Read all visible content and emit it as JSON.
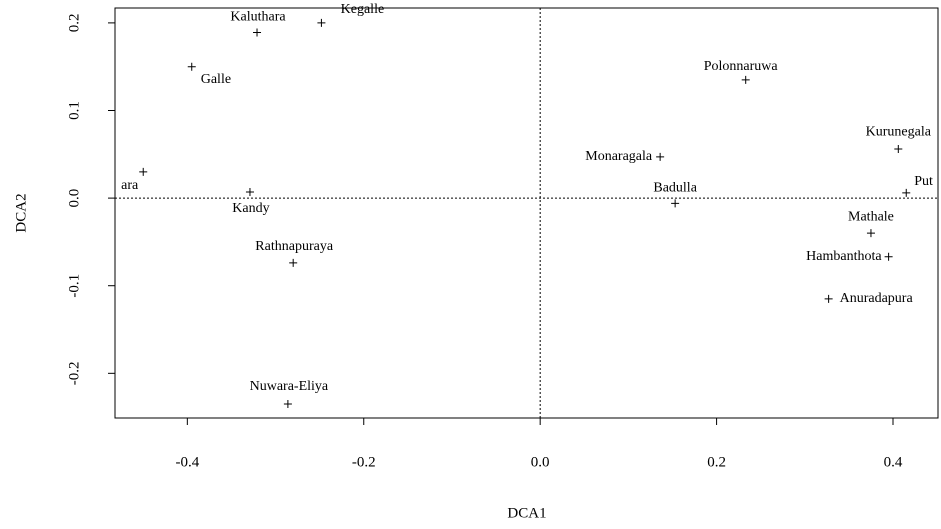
{
  "chart_data": {
    "type": "scatter",
    "xlabel": "DCA1",
    "ylabel": "DCA2",
    "xlim": [
      -0.482,
      0.451
    ],
    "ylim": [
      -0.251,
      0.217
    ],
    "xticks": [
      -0.4,
      -0.2,
      {
        "value": 0,
        "label": "0.0"
      },
      0.2,
      0.4
    ],
    "yticks": [
      -0.2,
      -0.1,
      {
        "value": 0,
        "label": "0.0"
      },
      0.1,
      0.2
    ],
    "labels": [
      "Kegalle",
      "Kaluthara",
      "Galle",
      "ara",
      "Kandy",
      "Rathnapuraya",
      "Nuwara-Eliya",
      "Polonnaruwa",
      "Monaragala",
      "Kurunegala",
      "Badulla",
      "Put",
      "Mathale",
      "Hambanthota",
      "Anuradapura"
    ],
    "x": [
      -0.248,
      -0.321,
      -0.395,
      -0.45,
      -0.329,
      -0.28,
      -0.286,
      0.233,
      0.136,
      0.406,
      0.153,
      0.415,
      0.375,
      0.395,
      0.327
    ],
    "y": [
      0.2,
      0.189,
      0.15,
      0.03,
      0.007,
      -0.074,
      -0.235,
      0.135,
      0.047,
      0.056,
      -0.006,
      0.006,
      -0.04,
      -0.067,
      -0.115
    ],
    "color": "#000000"
  }
}
